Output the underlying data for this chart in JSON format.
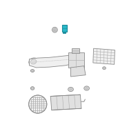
{
  "bg_color": "#ffffff",
  "line_color": "#aaaaaa",
  "dark_line": "#888888",
  "highlight_color": "#2ab8c8",
  "highlight_dark": "#1a8898",
  "highlight_base": "#1a9aaa",
  "fill_light": "#f0f0f0",
  "fill_mid": "#e0e0e0",
  "fill_dark": "#cccccc",
  "fill_gray": "#d8d8d8"
}
